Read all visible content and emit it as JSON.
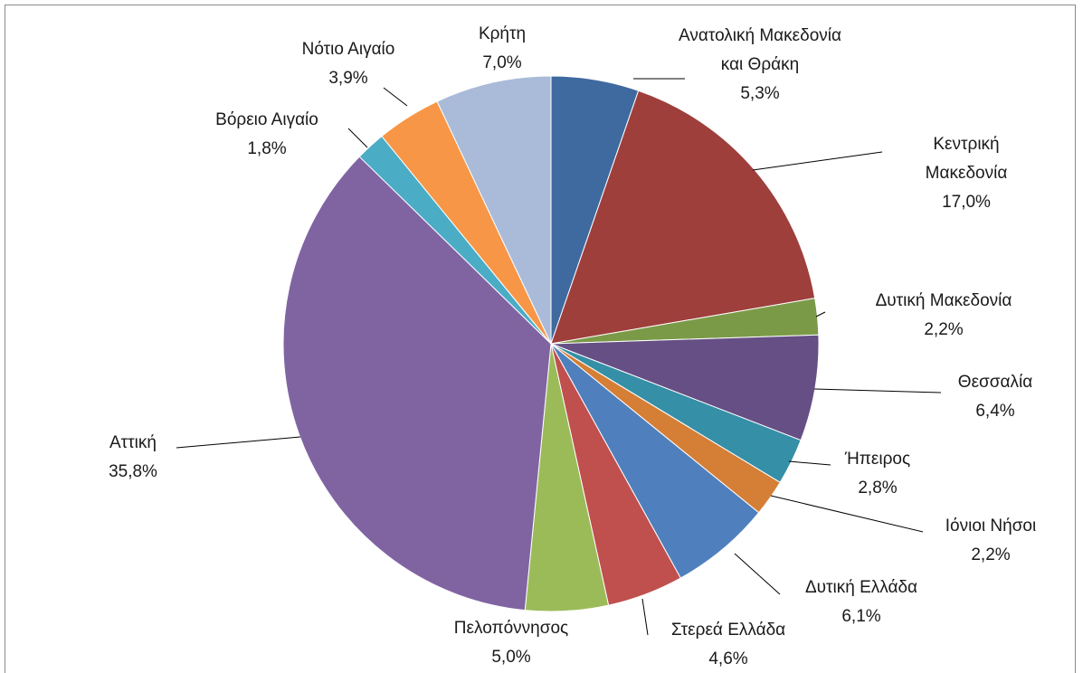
{
  "chart_data": {
    "type": "pie",
    "categories": [
      "Ανατολική Μακεδονία και Θράκη",
      "Κεντρική Μακεδονία",
      "Δυτική Μακεδονία",
      "Θεσσαλία",
      "Ήπειρος",
      "Ιόνιοι Νήσοι",
      "Δυτική Ελλάδα",
      "Στερεά Ελλάδα",
      "Πελοπόννησος",
      "Αττική",
      "Βόρειο Αιγαίο",
      "Νότιο Αιγαίο",
      "Κρήτη"
    ],
    "values": [
      5.3,
      17.0,
      2.2,
      6.4,
      2.8,
      2.2,
      6.1,
      4.6,
      5.0,
      35.8,
      1.8,
      3.9,
      7.0
    ],
    "value_labels": [
      "5,3%",
      "17,0%",
      "2,2%",
      "6,4%",
      "2,8%",
      "2,2%",
      "6,1%",
      "4,6%",
      "5,0%",
      "35,8%",
      "1,8%",
      "3,9%",
      "7,0%"
    ],
    "colors": [
      "#3f6a9f",
      "#9e3f3c",
      "#7b9a48",
      "#664f85",
      "#358fa6",
      "#d57e36",
      "#4f80bd",
      "#c0504d",
      "#9bbb59",
      "#8064a2",
      "#4bacc6",
      "#f79646",
      "#aabbd9"
    ]
  }
}
